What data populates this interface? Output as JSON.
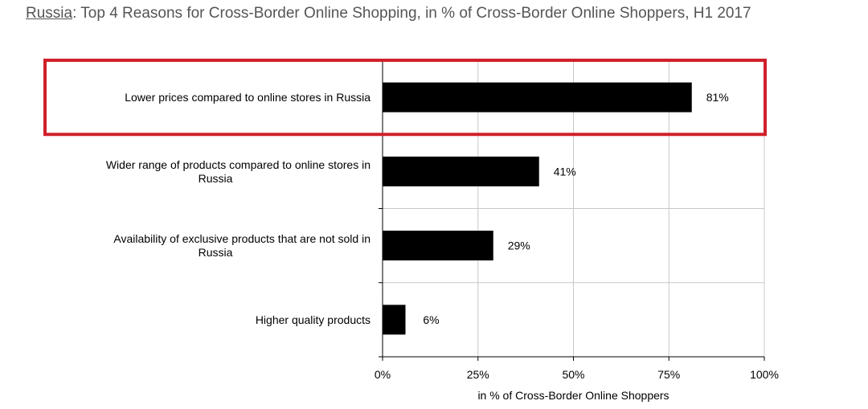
{
  "title": {
    "country": "Russia",
    "rest": ": Top 4 Reasons for Cross-Border Online Shopping, in % of Cross-Border Online Shoppers, H1 2017"
  },
  "chart_data": {
    "type": "bar",
    "orientation": "horizontal",
    "categories": [
      [
        "Lower prices compared to online stores in Russia"
      ],
      [
        "Wider range of products compared to online stores in",
        "Russia"
      ],
      [
        "Availability of exclusive products that are not sold in",
        "Russia"
      ],
      [
        "Higher quality products"
      ]
    ],
    "values": [
      81,
      41,
      29,
      6
    ],
    "value_labels": [
      "81%",
      "41%",
      "29%",
      "6%"
    ],
    "xlim": [
      0,
      100
    ],
    "xticks": [
      "0%",
      "25%",
      "50%",
      "75%",
      "100%"
    ],
    "xlabel": "in % of Cross-Border Online Shoppers",
    "grid": true,
    "highlight_index": 0,
    "colors": {
      "bar": "#000000",
      "grid": "#c8c8c8",
      "highlight": "#d0202a",
      "title": "#555555"
    }
  }
}
